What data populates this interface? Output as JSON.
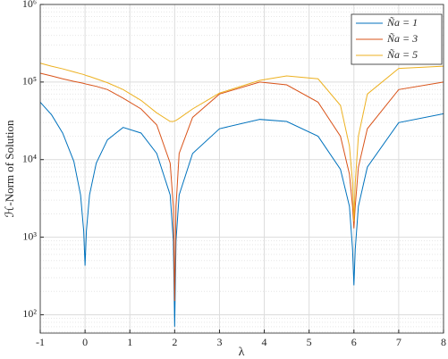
{
  "chart_data": {
    "type": "line",
    "xlabel": "λ",
    "ylabel": "ℋ-Norm of Solution",
    "x": [
      -1,
      -0.75,
      -0.5,
      -0.25,
      -0.1,
      -0.03,
      0,
      0.03,
      0.1,
      0.25,
      0.5,
      0.85,
      1.25,
      1.6,
      1.9,
      1.97,
      2,
      2.03,
      2.1,
      2.4,
      3,
      3.9,
      4.5,
      5.2,
      5.7,
      5.9,
      5.97,
      6,
      6.03,
      6.1,
      6.3,
      7,
      8
    ],
    "series": [
      {
        "name": "Ña = 1",
        "color": "#0072bd",
        "values": [
          55000,
          38000,
          22000,
          9500,
          3500,
          1200,
          430,
          1200,
          3500,
          9000,
          18000,
          26000,
          22000,
          12000,
          3500,
          900,
          70,
          900,
          3500,
          12000,
          25000,
          33000,
          31000,
          20000,
          7500,
          2500,
          700,
          240,
          700,
          2500,
          8000,
          30000,
          39000
        ]
      },
      {
        "name": "Ña = 3",
        "color": "#d95319",
        "values": [
          130000,
          120000,
          110000,
          102000,
          98000,
          96000,
          95000,
          94000,
          92000,
          88000,
          80000,
          62000,
          45000,
          28000,
          9000,
          2500,
          150,
          2500,
          12000,
          35000,
          70000,
          100000,
          92000,
          55000,
          20000,
          6500,
          2500,
          1300,
          2500,
          8000,
          25000,
          80000,
          100000
        ]
      },
      {
        "name": "Ña = 5",
        "color": "#edb120",
        "values": [
          175000,
          160000,
          148000,
          135000,
          128000,
          125000,
          123000,
          121000,
          118000,
          110000,
          98000,
          80000,
          58000,
          40000,
          31000,
          31000,
          31500,
          32000,
          34000,
          45000,
          72000,
          105000,
          120000,
          110000,
          50000,
          15000,
          5000,
          1600,
          5000,
          20000,
          70000,
          150000,
          160000
        ]
      }
    ],
    "xlim": [
      -1,
      8
    ],
    "xticks": [
      -1,
      0,
      1,
      2,
      3,
      4,
      5,
      6,
      7,
      8
    ],
    "ylim": [
      58,
      1000000
    ],
    "log_y": true,
    "yticks": [
      {
        "value": 100,
        "label": "10²"
      },
      {
        "value": 1000,
        "label": "10³"
      },
      {
        "value": 10000,
        "label": "10⁴"
      },
      {
        "value": 100000,
        "label": "10⁵"
      },
      {
        "value": 1000000,
        "label": "10⁶"
      }
    ],
    "grid": true,
    "minor_grid": true,
    "legend": "top-right"
  }
}
